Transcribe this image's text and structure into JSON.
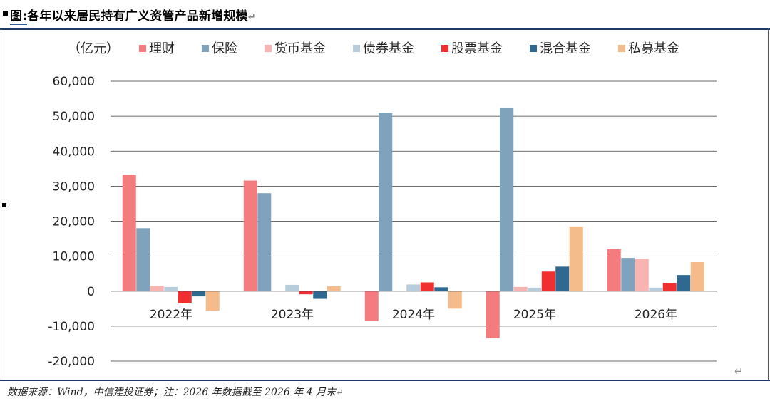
{
  "title": {
    "tag": "图:",
    "text": "各年以来居民持有广义资管产品新增规模"
  },
  "footer": {
    "text": "数据来源：Wind，中信建投证券；注：2026 年数据截至 2026 年 4 月末"
  },
  "chart_data": {
    "type": "bar",
    "unit": "（亿元）",
    "categories": [
      "2022年",
      "2023年",
      "2024年",
      "2025年",
      "2026年"
    ],
    "ylim": [
      -20000,
      60000
    ],
    "yticks": [
      60000,
      50000,
      40000,
      30000,
      20000,
      10000,
      0,
      -10000,
      -20000
    ],
    "ytick_labels": [
      "60,000",
      "50,000",
      "40,000",
      "30,000",
      "20,000",
      "10,000",
      "0",
      "-10,000",
      "-20,000"
    ],
    "grid": true,
    "legend_position": "top",
    "series": [
      {
        "name": "理财",
        "color": "#f47c7e",
        "values": [
          33300,
          31600,
          -8500,
          -13400,
          12000
        ]
      },
      {
        "name": "保险",
        "color": "#7fa3bd",
        "values": [
          18000,
          28000,
          51000,
          52300,
          9500
        ]
      },
      {
        "name": "货币基金",
        "color": "#f9b3b0",
        "values": [
          1500,
          100,
          0,
          1200,
          9200
        ]
      },
      {
        "name": "债券基金",
        "color": "#b8cddc",
        "values": [
          1200,
          1800,
          1900,
          1000,
          1000
        ]
      },
      {
        "name": "股票基金",
        "color": "#f03030",
        "values": [
          -3500,
          -900,
          2500,
          5600,
          2300
        ]
      },
      {
        "name": "混合基金",
        "color": "#2f6890",
        "values": [
          -1500,
          -2200,
          1100,
          7000,
          4600
        ]
      },
      {
        "name": "私募基金",
        "color": "#f6bb8a",
        "values": [
          -5600,
          1400,
          -5000,
          18500,
          8300
        ]
      }
    ]
  }
}
